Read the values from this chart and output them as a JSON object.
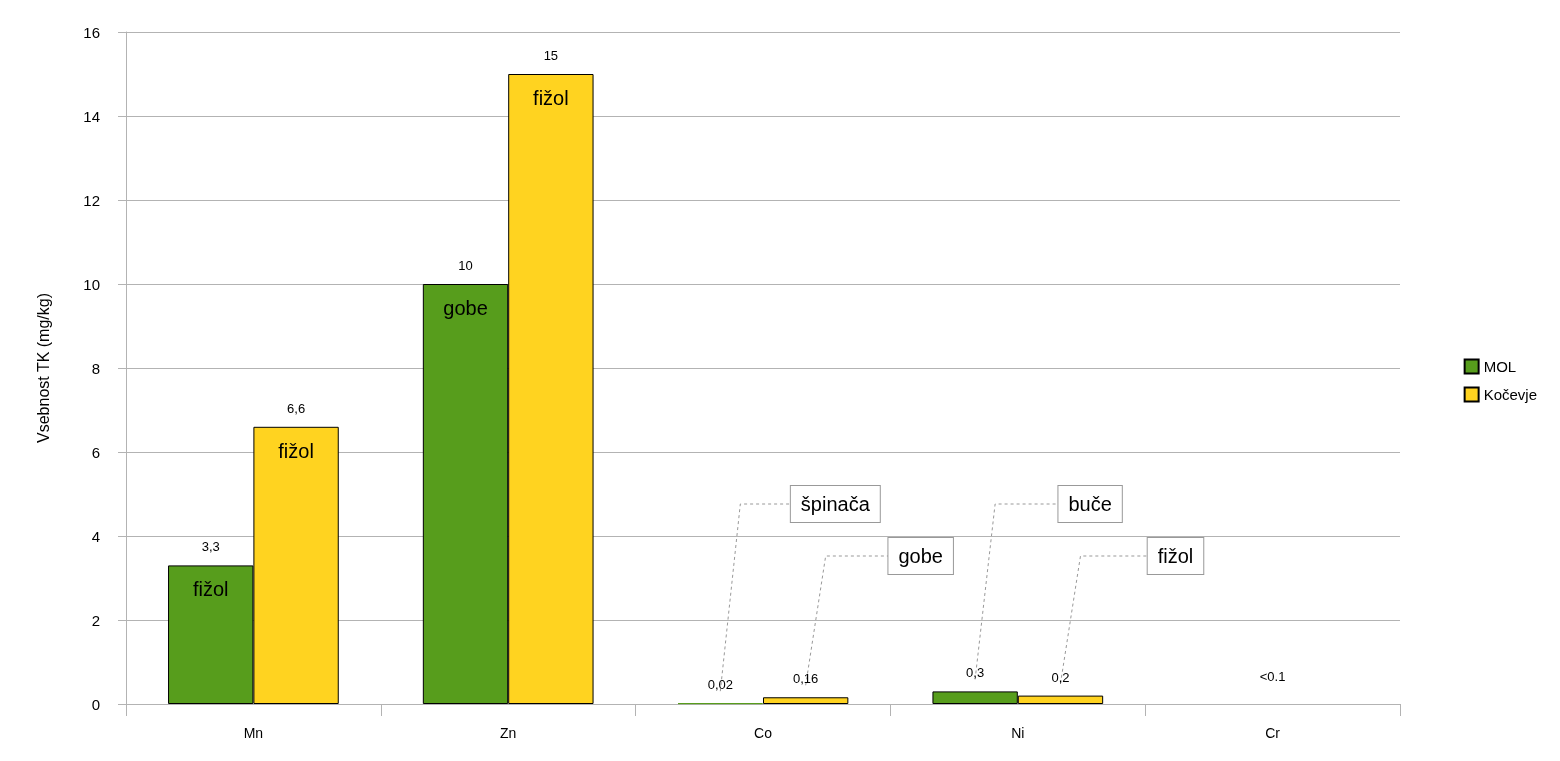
{
  "chart_data": {
    "type": "bar",
    "ylabel": "Vsebnost TK (mg/kg)",
    "categories": [
      "Mn",
      "Zn",
      "Co",
      "Ni",
      "Cr"
    ],
    "series": [
      {
        "name": "MOL",
        "color": "#579d1c",
        "values": [
          3.3,
          10,
          0.02,
          0.3,
          null
        ],
        "value_labels": [
          "3,3",
          "10",
          "0,02",
          "0,3",
          null
        ]
      },
      {
        "name": "Kočevje",
        "color": "#ffd320",
        "values": [
          6.6,
          15,
          0.16,
          0.2,
          null
        ],
        "value_labels": [
          "6,6",
          "15",
          "0,16",
          "0,2",
          null
        ]
      }
    ],
    "ylim": [
      0,
      16
    ],
    "yticks": [
      0,
      2,
      4,
      6,
      8,
      10,
      12,
      14,
      16
    ],
    "grid": "y",
    "legend": "right",
    "annotations": [
      {
        "text": "fižol",
        "x": "Mn",
        "y": 3.3
      },
      {
        "text": "fižol",
        "x": "Mn",
        "y": 6.6
      },
      {
        "text": "gobe",
        "x": "Zn",
        "y": 10
      },
      {
        "text": "fižol",
        "x": "Zn",
        "y": 15
      },
      "špinača",
      "gobe",
      "buče",
      "fižol",
      "<0.1"
    ]
  }
}
